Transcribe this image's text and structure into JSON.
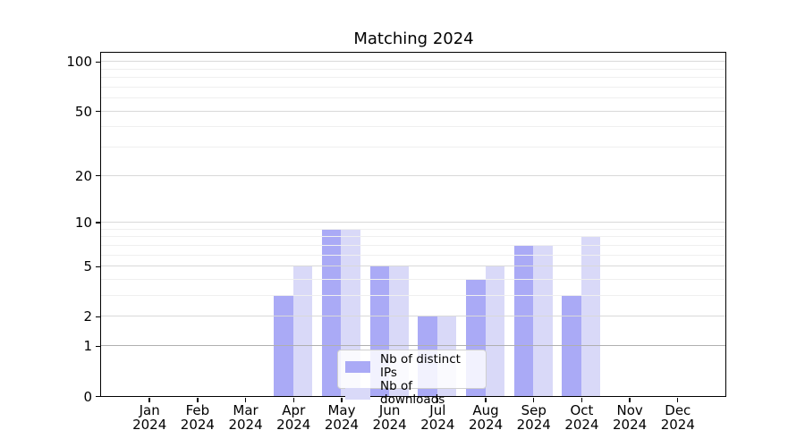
{
  "chart_data": {
    "type": "bar",
    "title": "Matching 2024",
    "categories": [
      "Jan",
      "Feb",
      "Mar",
      "Apr",
      "May",
      "Jun",
      "Jul",
      "Aug",
      "Sep",
      "Oct",
      "Nov",
      "Dec"
    ],
    "year_label": "2024",
    "series": [
      {
        "name": "Nb of distinct IPs",
        "color": "#aaaaf6",
        "values": [
          0,
          0,
          0,
          3,
          9,
          5,
          2,
          4,
          7,
          3,
          0,
          0
        ]
      },
      {
        "name": "Nb of downloads",
        "color": "#d9d9f8",
        "values": [
          0,
          0,
          0,
          5,
          9,
          5,
          2,
          5,
          7,
          8,
          0,
          0
        ]
      }
    ],
    "y_axis": {
      "scale": "log1p",
      "ticks": [
        0,
        1,
        2,
        5,
        10,
        20,
        50,
        100
      ],
      "minor_ticks": [
        3,
        4,
        6,
        7,
        8,
        9,
        30,
        40,
        60,
        70,
        80,
        90
      ],
      "top_value": 113
    },
    "grid": {
      "horizontal": true,
      "major_color": "#d9d9d9",
      "minor_color": "#efefef",
      "unit_line_color": "#b0b0b0"
    },
    "legend": {
      "position": "lower center"
    },
    "colors": {
      "spine": "#000000",
      "text": "#000000",
      "background": "#ffffff"
    }
  }
}
